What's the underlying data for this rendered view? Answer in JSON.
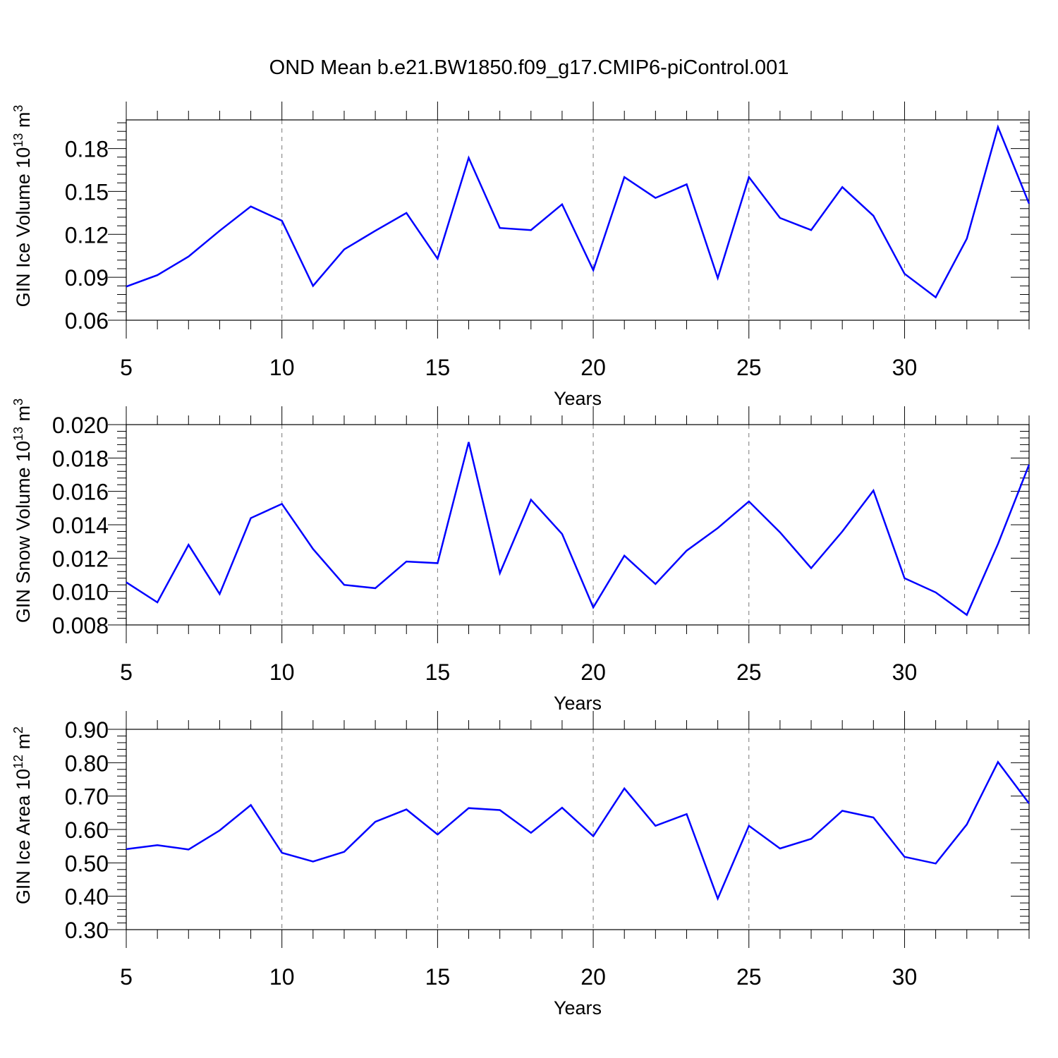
{
  "title": "OND Mean b.e21.BW1850.f09_g17.CMIP6-piControl.001",
  "style": {
    "line_color": "#0000ff",
    "grid_color": "#777777",
    "axis_color": "#000000"
  },
  "chart_data": [
    {
      "type": "line",
      "title": "",
      "xlabel": "Years",
      "ylabel": "GIN Ice Volume 10",
      "ylabel_sup": "13",
      "ylabel_unit": " m",
      "ylabel_unit_sup": "3",
      "xlim": [
        5,
        34
      ],
      "ylim": [
        0.06,
        0.2
      ],
      "xticks": [
        5,
        10,
        15,
        20,
        25,
        30
      ],
      "xtick_labels": [
        "5",
        "10",
        "15",
        "20",
        "25",
        "30"
      ],
      "yticks": [
        0.06,
        0.09,
        0.12,
        0.15,
        0.18
      ],
      "ytick_labels": [
        "0.06",
        "0.09",
        "0.12",
        "0.15",
        "0.18"
      ],
      "grid": "vertical dashed at major x ticks",
      "x": [
        5,
        6,
        7,
        8,
        9,
        10,
        11,
        12,
        13,
        14,
        15,
        16,
        17,
        18,
        19,
        20,
        21,
        22,
        23,
        24,
        25,
        26,
        27,
        28,
        29,
        30,
        31,
        32,
        33,
        34
      ],
      "series": [
        {
          "values": [
            0.0835,
            0.0915,
            0.1045,
            0.1225,
            0.1395,
            0.1295,
            0.084,
            0.1095,
            0.1225,
            0.135,
            0.103,
            0.1735,
            0.1245,
            0.123,
            0.141,
            0.095,
            0.16,
            0.1455,
            0.155,
            0.0895,
            0.16,
            0.1315,
            0.123,
            0.153,
            0.133,
            0.0925,
            0.076,
            0.117,
            0.195,
            0.1415
          ]
        }
      ]
    },
    {
      "type": "line",
      "title": "",
      "xlabel": "Years",
      "ylabel": "GIN Snow Volume 10",
      "ylabel_sup": "13",
      "ylabel_unit": " m",
      "ylabel_unit_sup": "3",
      "xlim": [
        5,
        34
      ],
      "ylim": [
        0.008,
        0.02
      ],
      "xticks": [
        5,
        10,
        15,
        20,
        25,
        30
      ],
      "xtick_labels": [
        "5",
        "10",
        "15",
        "20",
        "25",
        "30"
      ],
      "yticks": [
        0.008,
        0.01,
        0.012,
        0.014,
        0.016,
        0.018,
        0.02
      ],
      "ytick_labels": [
        "0.008",
        "0.010",
        "0.012",
        "0.014",
        "0.016",
        "0.018",
        "0.020"
      ],
      "grid": "vertical dashed at major x ticks",
      "x": [
        5,
        6,
        7,
        8,
        9,
        10,
        11,
        12,
        13,
        14,
        15,
        16,
        17,
        18,
        19,
        20,
        21,
        22,
        23,
        24,
        25,
        26,
        27,
        28,
        29,
        30,
        31,
        32,
        33,
        34
      ],
      "series": [
        {
          "values": [
            0.01055,
            0.00935,
            0.0128,
            0.00985,
            0.0144,
            0.01525,
            0.01255,
            0.0104,
            0.0102,
            0.0118,
            0.0117,
            0.01895,
            0.0111,
            0.0155,
            0.01345,
            0.00905,
            0.01215,
            0.01045,
            0.01245,
            0.0138,
            0.0154,
            0.01355,
            0.0114,
            0.0136,
            0.01605,
            0.0108,
            0.00995,
            0.0086,
            0.01285,
            0.0176
          ]
        }
      ]
    },
    {
      "type": "line",
      "title": "",
      "xlabel": "Years",
      "ylabel": "GIN Ice Area 10",
      "ylabel_sup": "12",
      "ylabel_unit": " m",
      "ylabel_unit_sup": "2",
      "xlim": [
        5,
        34
      ],
      "ylim": [
        0.3,
        0.9
      ],
      "xticks": [
        5,
        10,
        15,
        20,
        25,
        30
      ],
      "xtick_labels": [
        "5",
        "10",
        "15",
        "20",
        "25",
        "30"
      ],
      "yticks": [
        0.3,
        0.4,
        0.5,
        0.6,
        0.7,
        0.8,
        0.9
      ],
      "ytick_labels": [
        "0.30",
        "0.40",
        "0.50",
        "0.60",
        "0.70",
        "0.80",
        "0.90"
      ],
      "grid": "vertical dashed at major x ticks",
      "x": [
        5,
        6,
        7,
        8,
        9,
        10,
        11,
        12,
        13,
        14,
        15,
        16,
        17,
        18,
        19,
        20,
        21,
        22,
        23,
        24,
        25,
        26,
        27,
        28,
        29,
        30,
        31,
        32,
        33,
        34
      ],
      "series": [
        {
          "values": [
            0.541,
            0.553,
            0.54,
            0.597,
            0.673,
            0.53,
            0.504,
            0.533,
            0.623,
            0.66,
            0.585,
            0.664,
            0.658,
            0.59,
            0.665,
            0.58,
            0.723,
            0.611,
            0.646,
            0.393,
            0.611,
            0.543,
            0.572,
            0.656,
            0.636,
            0.518,
            0.498,
            0.615,
            0.802,
            0.678
          ]
        }
      ]
    }
  ]
}
